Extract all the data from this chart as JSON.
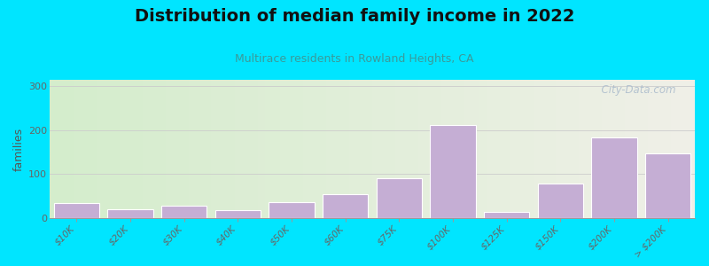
{
  "title": "Distribution of median family income in 2022",
  "subtitle": "Multirace residents in Rowland Heights, CA",
  "ylabel": "families",
  "categories": [
    "$10K",
    "$20K",
    "$30K",
    "$40K",
    "$50K",
    "$60K",
    "$75K",
    "$100K",
    "$125K",
    "$150K",
    "$200K",
    "> $200K"
  ],
  "values": [
    35,
    20,
    28,
    18,
    37,
    55,
    90,
    213,
    15,
    78,
    183,
    148
  ],
  "bar_color": "#c5aed4",
  "bar_edge_color": "#c5aed4",
  "background_outer": "#00e5ff",
  "bg_left_color": "#d4edcc",
  "bg_right_color": "#f0f0e8",
  "grid_color": "#cccccc",
  "title_color": "#111111",
  "subtitle_color": "#3a9a9a",
  "ylabel_color": "#555555",
  "tick_label_color": "#666666",
  "yticks": [
    0,
    100,
    200,
    300
  ],
  "ylim": [
    0,
    315
  ],
  "watermark": "  City-Data.com",
  "watermark_color": "#aabbcc",
  "title_fontsize": 14,
  "subtitle_fontsize": 9,
  "tick_fontsize": 7.5
}
